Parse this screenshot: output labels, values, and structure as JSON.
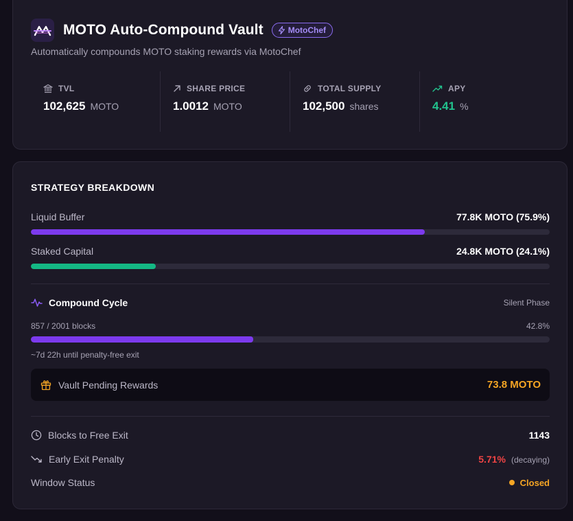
{
  "header": {
    "title": "MOTO Auto-Compound Vault",
    "badge": "MotoChef",
    "subtitle": "Automatically compounds MOTO staking rewards via MotoChef"
  },
  "stats": [
    {
      "label": "TVL",
      "value": "102,625",
      "unit": "MOTO",
      "icon": "bank-icon"
    },
    {
      "label": "SHARE PRICE",
      "value": "1.0012",
      "unit": "MOTO",
      "icon": "arrow-up-right-icon"
    },
    {
      "label": "TOTAL SUPPLY",
      "value": "102,500",
      "unit": "shares",
      "icon": "link-icon"
    },
    {
      "label": "APY",
      "value": "4.41",
      "unit": "%",
      "icon": "trending-up-icon"
    }
  ],
  "strategy": {
    "title": "STRATEGY BREAKDOWN",
    "allocations": [
      {
        "label": "Liquid Buffer",
        "value": "77.8K MOTO (75.9%)",
        "percent": 75.9,
        "color": "#7c3aed"
      },
      {
        "label": "Staked Capital",
        "value": "24.8K MOTO (24.1%)",
        "percent": 24.1,
        "color": "#14b884"
      }
    ]
  },
  "cycle": {
    "title": "Compound Cycle",
    "phase": "Silent Phase",
    "blocks": "857 / 2001 blocks",
    "percent_text": "42.8%",
    "percent": 42.8,
    "note": "~7d 22h until penalty-free exit"
  },
  "pending": {
    "label": "Vault Pending Rewards",
    "value": "73.8 MOTO"
  },
  "info": {
    "blocks_label": "Blocks to Free Exit",
    "blocks_value": "1143",
    "penalty_label": "Early Exit Penalty",
    "penalty_value": "5.71%",
    "penalty_note": "(decaying)",
    "window_label": "Window Status",
    "window_value": "Closed"
  },
  "colors": {
    "accent": "#7c3aed",
    "green": "#22c38e",
    "orange": "#f5a524",
    "red": "#ef4444"
  }
}
